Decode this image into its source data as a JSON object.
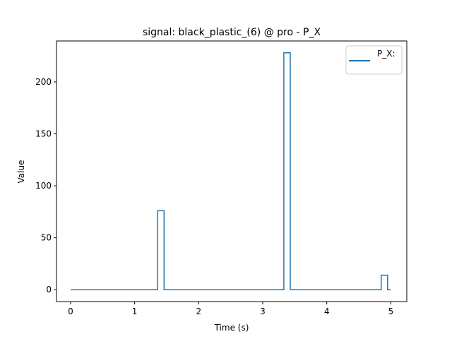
{
  "chart_data": {
    "type": "line",
    "title": "signal: black_plastic_(6) @ pro - P_X",
    "xlabel": "Time (s)",
    "ylabel": "Value",
    "xlim": [
      -0.22,
      5.25
    ],
    "ylim": [
      -11.4,
      239.4
    ],
    "xticks": [
      0,
      1,
      2,
      3,
      4,
      5
    ],
    "yticks": [
      0,
      50,
      100,
      150,
      200
    ],
    "grid": false,
    "legend_position": "top-right",
    "series": [
      {
        "name": "P_X:",
        "color": "#1f77b4",
        "style": "step",
        "x": [
          0,
          1.36,
          1.36,
          1.46,
          1.46,
          3.33,
          3.33,
          3.43,
          3.43,
          4.85,
          4.85,
          4.95,
          4.95,
          5.0
        ],
        "y": [
          0,
          0,
          76,
          76,
          0,
          0,
          228,
          228,
          0,
          0,
          14,
          14,
          0,
          0
        ]
      }
    ]
  }
}
